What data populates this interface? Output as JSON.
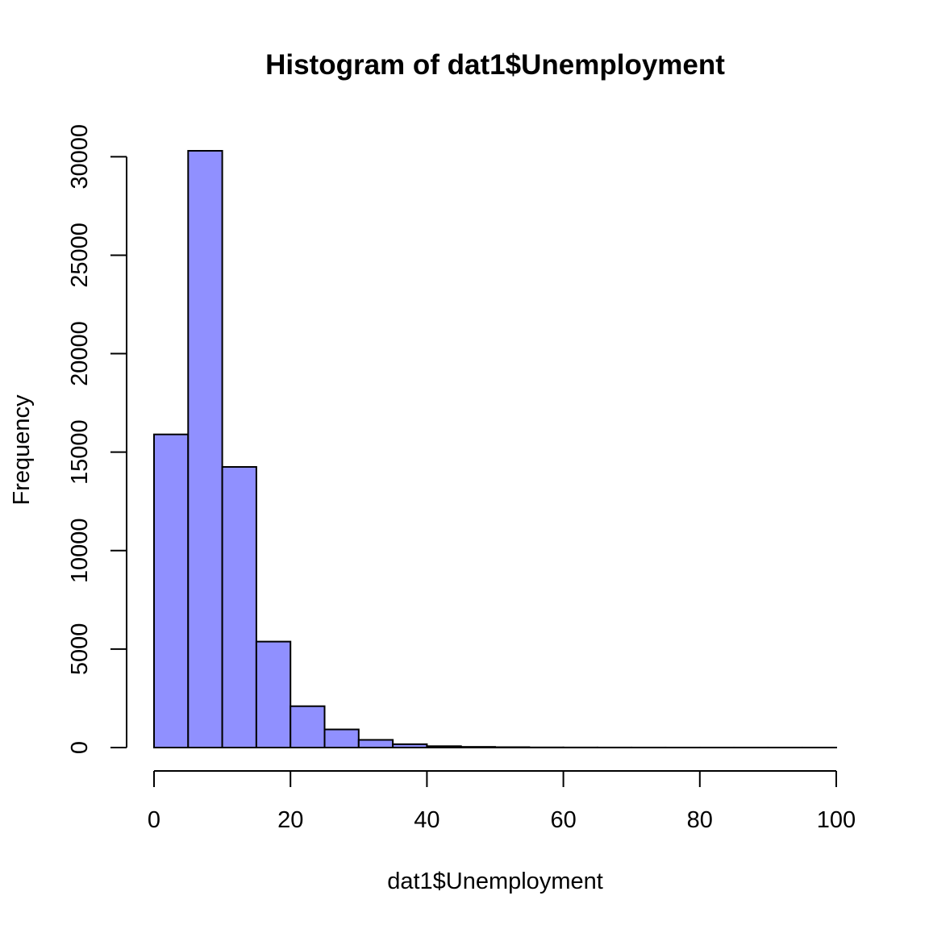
{
  "chart_data": {
    "type": "bar",
    "title": "Histogram of dat1$Unemployment",
    "xlabel": "dat1$Unemployment",
    "ylabel": "Frequency",
    "bar_color": "#9090FF",
    "bin_edges": [
      0,
      5,
      10,
      15,
      20,
      25,
      30,
      35,
      40,
      45,
      50,
      55,
      60,
      65,
      70,
      75,
      80,
      85,
      90,
      95,
      100
    ],
    "values": [
      15900,
      30300,
      14250,
      5380,
      2100,
      920,
      390,
      170,
      70,
      35,
      20,
      8,
      5,
      3,
      2,
      1,
      1,
      1,
      1,
      1
    ],
    "xlim": [
      0,
      100
    ],
    "ylim": [
      0,
      30300
    ],
    "x_ticks": [
      0,
      20,
      40,
      60,
      80,
      100
    ],
    "x_tick_labels": [
      "0",
      "20",
      "40",
      "60",
      "80",
      "100"
    ],
    "y_ticks": [
      0,
      5000,
      10000,
      15000,
      20000,
      25000,
      30000
    ],
    "y_tick_labels": [
      "0",
      "5000",
      "10000",
      "15000",
      "20000",
      "25000",
      "30000"
    ],
    "grid": false,
    "legend": "none"
  }
}
